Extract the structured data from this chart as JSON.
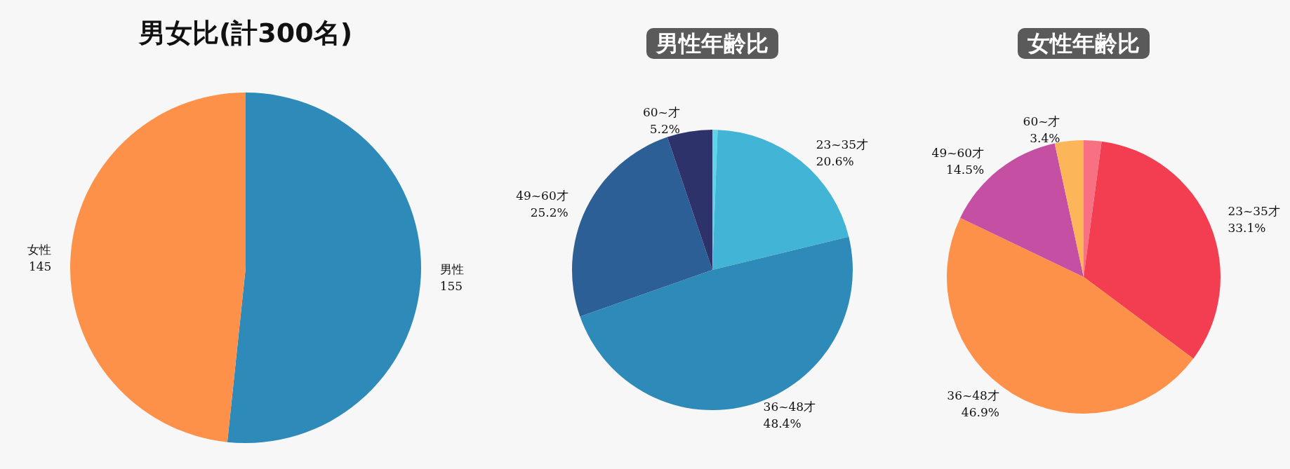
{
  "chart_data": [
    {
      "type": "pie",
      "title": "男女比(計300名)",
      "categories": [
        "男性",
        "女性"
      ],
      "values": [
        155,
        145
      ],
      "colors": [
        "#2e8ab8",
        "#fe914a"
      ],
      "data_labels": true
    },
    {
      "type": "pie",
      "title": "男性年齢比",
      "categories": [
        null,
        "23~35才",
        "36~48才",
        "49~60才",
        "60~才"
      ],
      "values": [
        0.6,
        20.6,
        48.4,
        25.2,
        5.2
      ],
      "value_labels": [
        null,
        "20.6%",
        "48.4%",
        "25.2%",
        "5.2%"
      ],
      "colors": [
        "#5fd3e8",
        "#42b4d6",
        "#2e8ab8",
        "#2d5f97",
        "#2e326a"
      ]
    },
    {
      "type": "pie",
      "title": "女性年齢比",
      "categories": [
        null,
        "23~35才",
        "36~48才",
        "49~60才",
        "60~才"
      ],
      "values": [
        2.1,
        33.1,
        46.9,
        14.5,
        3.4
      ],
      "value_labels": [
        null,
        "33.1%",
        "46.9%",
        "14.5%",
        "3.4%"
      ],
      "colors": [
        "#f87183",
        "#f33d50",
        "#fe914a",
        "#c44fa3",
        "#fdb55a"
      ]
    }
  ]
}
